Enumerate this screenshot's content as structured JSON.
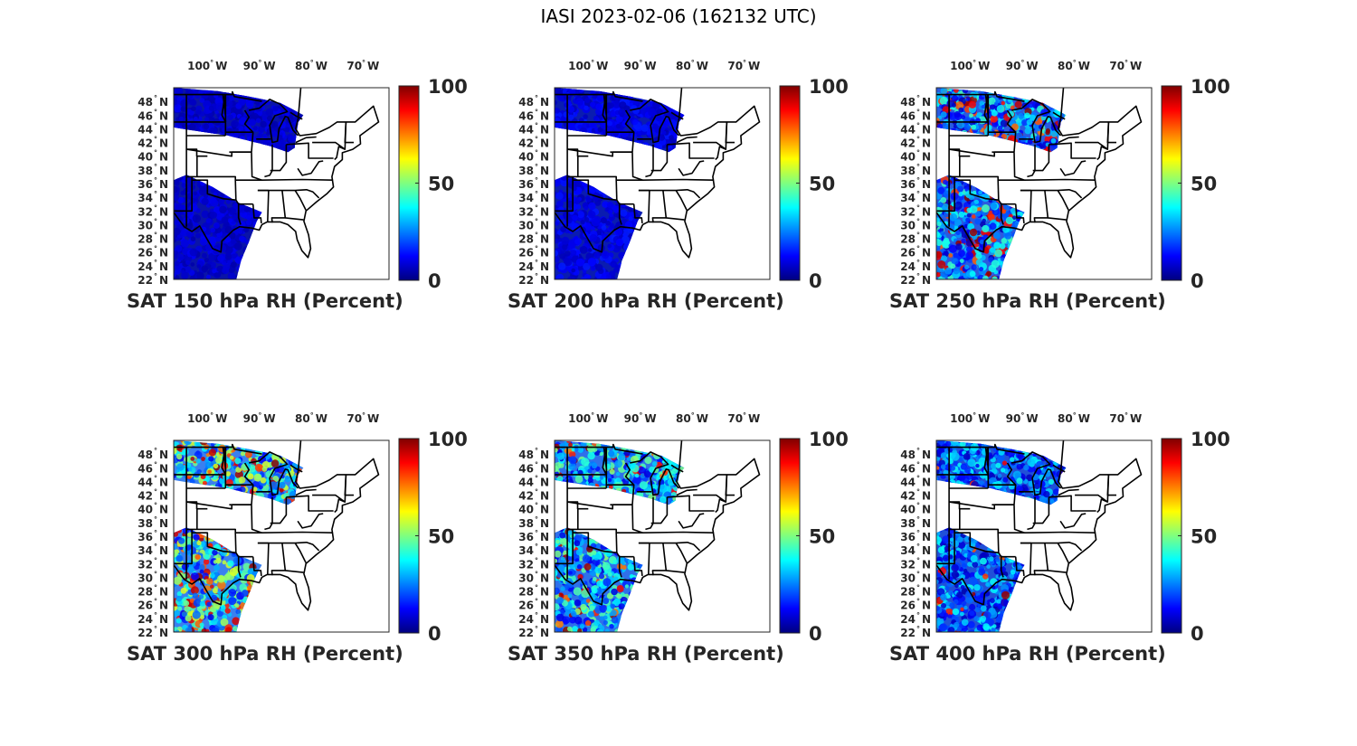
{
  "figure_title": "IASI 2023-02-06 (162132 UTC)",
  "lon_ticks": [
    {
      "value": "100",
      "dir": "W"
    },
    {
      "value": "90",
      "dir": "W"
    },
    {
      "value": "80",
      "dir": "W"
    },
    {
      "value": "70",
      "dir": "W"
    }
  ],
  "lat_ticks": [
    {
      "value": "48",
      "dir": "N"
    },
    {
      "value": "46",
      "dir": "N"
    },
    {
      "value": "44",
      "dir": "N"
    },
    {
      "value": "42",
      "dir": "N"
    },
    {
      "value": "40",
      "dir": "N"
    },
    {
      "value": "38",
      "dir": "N"
    },
    {
      "value": "36",
      "dir": "N"
    },
    {
      "value": "34",
      "dir": "N"
    },
    {
      "value": "32",
      "dir": "N"
    },
    {
      "value": "30",
      "dir": "N"
    },
    {
      "value": "28",
      "dir": "N"
    },
    {
      "value": "26",
      "dir": "N"
    },
    {
      "value": "24",
      "dir": "N"
    },
    {
      "value": "22",
      "dir": "N"
    }
  ],
  "colorbar": {
    "colormap": "jet",
    "colors": [
      "#00007f",
      "#0000ff",
      "#007fff",
      "#00ffff",
      "#7fff7f",
      "#ffff00",
      "#ff7f00",
      "#ff0000",
      "#7f0000"
    ],
    "ticks": [
      "100",
      "50",
      "0"
    ],
    "min": 0,
    "max": 100
  },
  "land_color": "#ffffff",
  "border_color": "#000000",
  "panels": [
    {
      "caption": "SAT 150 hPa RH (Percent)",
      "base_rh": 8,
      "spread": 4,
      "hot_fraction": 0.0,
      "swath_color": "#0a14a8"
    },
    {
      "caption": "SAT 200 hPa RH (Percent)",
      "base_rh": 10,
      "spread": 5,
      "hot_fraction": 0.0,
      "swath_color": "#0a1cb0"
    },
    {
      "caption": "SAT 250 hPa RH (Percent)",
      "base_rh": 25,
      "spread": 20,
      "hot_fraction": 0.18,
      "swath_color": "#2a5ae0"
    },
    {
      "caption": "SAT 300 hPa RH (Percent)",
      "base_rh": 35,
      "spread": 25,
      "hot_fraction": 0.2,
      "swath_color": "#3a80f0"
    },
    {
      "caption": "SAT 350 hPa RH (Percent)",
      "base_rh": 30,
      "spread": 22,
      "hot_fraction": 0.08,
      "swath_color": "#2f70ea"
    },
    {
      "caption": "SAT 400 hPa RH (Percent)",
      "base_rh": 22,
      "spread": 18,
      "hot_fraction": 0.04,
      "swath_color": "#2050d8"
    }
  ]
}
